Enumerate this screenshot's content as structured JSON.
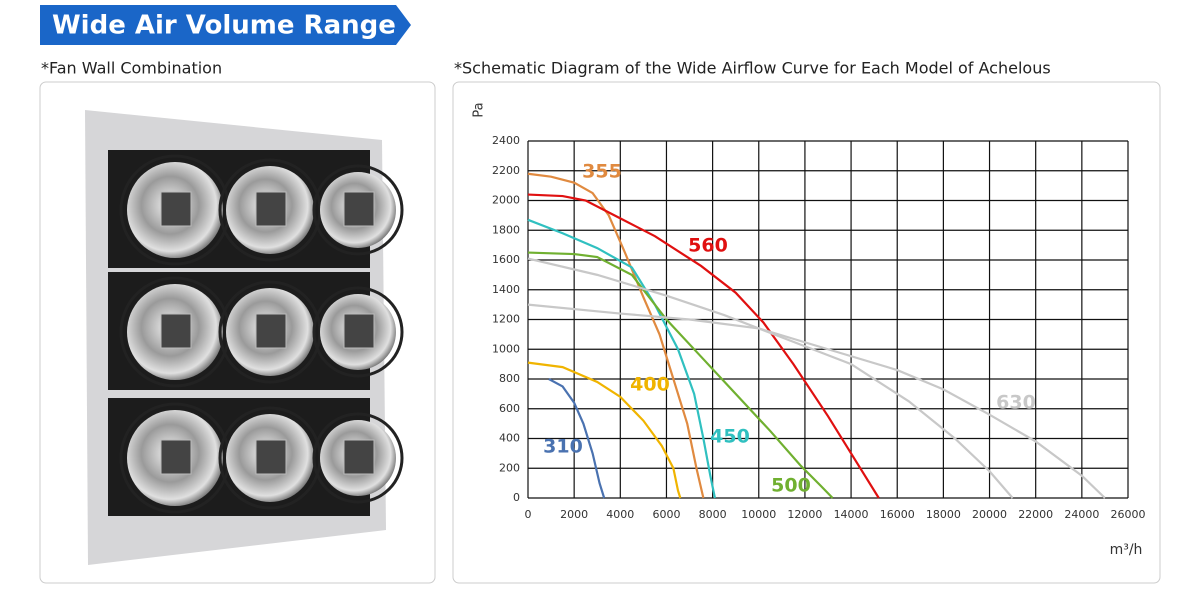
{
  "header": {
    "title": "Wide Air Volume Range"
  },
  "left_panel": {
    "caption": "*Fan Wall Combination"
  },
  "right_panel": {
    "caption": "*Schematic Diagram of the Wide Airflow Curve for Each Model of Achelous"
  },
  "chart_data": {
    "type": "line",
    "y_label": "Pa",
    "x_label": "m³/h",
    "xlim": [
      0,
      26000
    ],
    "xticks": [
      0,
      2000,
      4000,
      6000,
      8000,
      10000,
      12000,
      14000,
      16000,
      18000,
      20000,
      22000,
      24000,
      26000
    ],
    "ylim": [
      0,
      2400
    ],
    "yticks": [
      0,
      200,
      400,
      600,
      800,
      1000,
      1200,
      1400,
      1600,
      1800,
      2000,
      2200,
      2400
    ],
    "grid": true,
    "series": [
      {
        "name": "310",
        "color": "#4a72b0",
        "x": [
          900,
          1500,
          2000,
          2400,
          2800,
          3100,
          3300
        ],
        "values": [
          800,
          750,
          640,
          500,
          300,
          100,
          0
        ]
      },
      {
        "name": "355",
        "color": "#e08a40",
        "x": [
          0,
          1000,
          2000,
          2800,
          3500,
          4200,
          5000,
          5700,
          6300,
          6900,
          7300,
          7600
        ],
        "values": [
          2180,
          2160,
          2120,
          2050,
          1900,
          1650,
          1350,
          1100,
          800,
          500,
          200,
          0
        ]
      },
      {
        "name": "400",
        "color": "#f0b400",
        "x": [
          0,
          1500,
          3000,
          4000,
          5000,
          5800,
          6300,
          6500,
          6600
        ],
        "values": [
          910,
          880,
          780,
          680,
          520,
          350,
          200,
          50,
          0
        ]
      },
      {
        "name": "450",
        "color": "#30c0c0",
        "x": [
          0,
          1500,
          3000,
          4500,
          5500,
          6500,
          7200,
          7600,
          7900,
          8100
        ],
        "values": [
          1870,
          1780,
          1680,
          1550,
          1300,
          1000,
          700,
          400,
          150,
          0
        ]
      },
      {
        "name": "500",
        "color": "#70b030",
        "x": [
          0,
          2000,
          3000,
          4500,
          6000,
          7500,
          9000,
          10500,
          11800,
          12700,
          13200
        ],
        "values": [
          1650,
          1640,
          1620,
          1500,
          1200,
          950,
          700,
          450,
          220,
          80,
          0
        ]
      },
      {
        "name": "560",
        "color": "#e01010",
        "x": [
          0,
          1500,
          2500,
          4000,
          5500,
          7500,
          9000,
          10200,
          11500,
          13000,
          14200,
          15200
        ],
        "values": [
          2040,
          2030,
          2000,
          1880,
          1760,
          1560,
          1380,
          1180,
          900,
          550,
          250,
          0
        ]
      },
      {
        "name": "630",
        "color": "#c8c8c8",
        "x": [
          0,
          3000,
          6000,
          8500,
          11000,
          14000,
          16500,
          18500,
          20000,
          21000
        ],
        "values": [
          1610,
          1500,
          1360,
          1230,
          1080,
          900,
          650,
          400,
          180,
          0
        ]
      },
      {
        "color": "#c8c8c8",
        "x": [
          0,
          4000,
          7000,
          10000,
          13000,
          16000,
          18000,
          20000,
          22000,
          24000,
          25000
        ],
        "values": [
          1300,
          1240,
          1200,
          1140,
          1000,
          860,
          730,
          560,
          380,
          150,
          0
        ]
      }
    ]
  }
}
